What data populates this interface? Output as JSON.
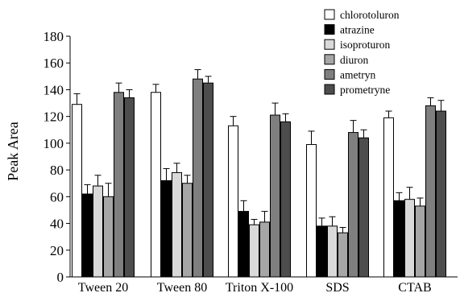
{
  "chart_data": {
    "type": "bar",
    "title": "",
    "xlabel": "",
    "ylabel": "Peak Area",
    "ylim": [
      0,
      180
    ],
    "yticks": [
      0,
      20,
      40,
      60,
      80,
      100,
      120,
      140,
      160,
      180
    ],
    "grid": false,
    "legend_position": "top-right",
    "categories": [
      "Tween 20",
      "Tween 80",
      "Triton X-100",
      "SDS",
      "CTAB"
    ],
    "series": [
      {
        "name": "chlorotoluron",
        "color": "#ffffff",
        "values": [
          129,
          138,
          113,
          99,
          119
        ],
        "errors": [
          8,
          6,
          7,
          10,
          5
        ]
      },
      {
        "name": "atrazine",
        "color": "#000000",
        "values": [
          62,
          72,
          49,
          38,
          57
        ],
        "errors": [
          7,
          9,
          8,
          6,
          6
        ]
      },
      {
        "name": "isoproturon",
        "color": "#d9d9d9",
        "values": [
          68,
          78,
          39,
          38,
          58
        ],
        "errors": [
          8,
          7,
          4,
          7,
          9
        ]
      },
      {
        "name": "diuron",
        "color": "#a6a6a6",
        "values": [
          60,
          70,
          41,
          33,
          53
        ],
        "errors": [
          10,
          6,
          8,
          4,
          6
        ]
      },
      {
        "name": "ametryn",
        "color": "#7f7f7f",
        "values": [
          138,
          148,
          121,
          108,
          128
        ],
        "errors": [
          7,
          7,
          9,
          9,
          6
        ]
      },
      {
        "name": "prometryne",
        "color": "#4d4d4d",
        "values": [
          134,
          145,
          116,
          104,
          124
        ],
        "errors": [
          6,
          5,
          6,
          6,
          8
        ]
      }
    ]
  }
}
